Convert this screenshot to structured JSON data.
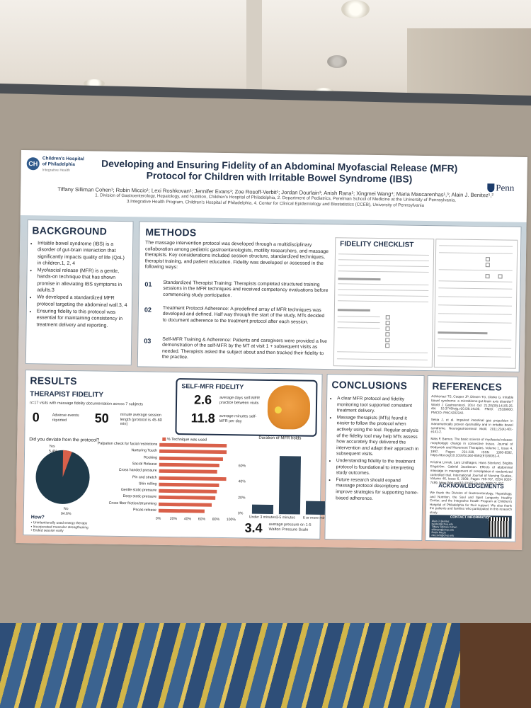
{
  "poster": {
    "title": "Developing and Ensuring Fidelity of an Abdominal Myofascial Release (MFR) Protocol for Children with Irritable Bowel Syndrome (IBS)",
    "authors": "Tiffany Silliman Cohen¹; Robin Miccio¹; Lexi Roshkovan¹; Jennifer Evans¹; Zoe Rosoff-Verbit¹; Jordan Dourlain¹; Anish Rana¹; Xingmei Wang⁴; Maria Mascarenhas¹,³; Alain J. Benitez¹,²",
    "affiliation_1": "1. Division of Gastroenterology, Hepatology, and Nutrition, Children's Hospital of Philadelphia, 2. Department of Pediatrics, Perelman School of Medicine at the University of Pennsylvania,",
    "affiliation_2": "3.Integrative Health Program, Children's Hospital of Philadelphia, 4. Center for Clinical Epidemiology and Biostatistics (CCEB), University of Pennsylvania",
    "logo_left_1": "Children's Hospital",
    "logo_left_2": "of Philadelphia",
    "logo_left_3": "Integrative Health",
    "logo_right": "Penn"
  },
  "background": {
    "heading": "BACKGROUND",
    "bullets": [
      "Irritable bowel syndrome (IBS) is a disorder of gut-brain interaction that significantly impacts quality of life (QoL) in children.1, 2, 4",
      "Myofascial release (MFR) is a gentle, hands-on technique that has shown promise in alleviating IBS symptoms in adults.3",
      "We developed a standardized MFR protocol targeting the abdominal wall.3, 4",
      "Ensuring fidelity to this protocol was essential for maintaining consistency in treatment delivery and reporting."
    ]
  },
  "methods": {
    "heading": "METHODS",
    "intro": "The massage intervention protocol was developed through a multidisciplinary collaboration among pediatric gastroenterologists, motility researchers, and massage therapists. Key considerations included session structure, standardized techniques, therapist training, and patient education. Fidelity was developed or assessed in the following ways:",
    "steps": [
      {
        "num": "01",
        "text": "Standardized Therapist Training: Therapists completed structured training sessions in the MFR techniques and received competency evaluations before commencing study participation."
      },
      {
        "num": "02",
        "text": "Treatment Protocol Adherence: A predefined array of MFR techniques was developed and defined. Half way through the start of the study, MTs decided to document adherence to the treatment protocol after each session."
      },
      {
        "num": "03",
        "text": "Self-MFR Training & Adherence: Patients and caregivers were provided a live demonstration of the self-MFR by the MT at visit 1 + subsequent visits as needed. Therapists asked the subject about and then tracked their fidelity to the practice."
      }
    ],
    "checklist_title": "FIDELITY CHECKLIST"
  },
  "results": {
    "heading": "RESULTS",
    "subheading": "THERAPIST FIDELITY",
    "note": "n=17 visits with massage fidelity documentation across 7 subjects",
    "stat1_value": "0",
    "stat1_label": "Adverse events reported",
    "stat2_value": "50",
    "stat2_label": "minute average session length (protocol is 45-60 min)",
    "pie_question": "Did you deviate from the protocol?",
    "pie_yes_label": "Yes",
    "pie_yes_pct": "5.4%",
    "pie_no_label": "No",
    "pie_no_pct": "94.6%",
    "how_heading": "How?",
    "how_items": [
      "Unintentionally used energy therapy",
      "Incorporated muscular strengthening",
      "Ended session early"
    ],
    "self_mfr_heading": "SELF-MFR FIDELITY",
    "self_stat1_value": "2.6",
    "self_stat1_label": "average days self-MFR practice between visits",
    "self_stat2_value": "11.8",
    "self_stat2_label": "average minutes self-MFR per day",
    "pressure_value": "3.4",
    "pressure_label": "average pressure on 1-5 Walton Pressure Scale"
  },
  "chart_data": [
    {
      "type": "pie",
      "title": "Did you deviate from the protocol?",
      "categories": [
        "Yes",
        "No"
      ],
      "values": [
        5.4,
        94.6
      ]
    },
    {
      "type": "bar",
      "orientation": "horizontal",
      "legend": "% Technique was used",
      "categories": [
        "Palpation check for facial restrictions",
        "Nurturing Touch",
        "Rocking",
        "Sacral Release",
        "Cross handed pressure",
        "Pin and stretch",
        "Skin rolling",
        "Gentle static pressure",
        "Deep static pressure",
        "Cross fiber friction/strumming",
        "Psoas release"
      ],
      "values": [
        95,
        95,
        90,
        85,
        82,
        95,
        85,
        82,
        80,
        75,
        65
      ],
      "xticks": [
        "0%",
        "20%",
        "40%",
        "60%",
        "80%",
        "100%"
      ],
      "xlim": [
        0,
        100
      ]
    },
    {
      "type": "bar",
      "title": "Duration of MFR holds",
      "categories": [
        "Under 3 minutes",
        "3-5 minutes",
        "6 or more minutes"
      ],
      "values": [
        12,
        73,
        17
      ],
      "yticks": [
        "0%",
        "20%",
        "40%",
        "60%"
      ],
      "ylim": [
        0,
        80
      ]
    }
  ],
  "conclusions": {
    "heading": "CONCLUSIONS",
    "bullets": [
      "A clear MFR protocol and fidelity monitoring tool supported consistent treatment delivery.",
      "Massage therapists (MTs) found it easier to follow the protocol when actively using the tool. Regular analysis of the fidelity tool may help MTs assess how accurately they delivered the intervention and adapt their approach in subsequent visits.",
      "Understanding fidelity to the treatment protocol is foundational to interpreting study outcomes.",
      "Future research should expand massage protocol descriptions and improve strategies for supporting home-based adherence."
    ]
  },
  "references": {
    "heading": "REFERENCES",
    "items": [
      "Ashkenazi TS, Cooper JP, Diesen TG, Clarke G. Irritable bowel syndrome: a microbiome-gut-brain axis disorder? World J Gastroenterol. 2014 Oct 21;20(39):14105-25. doi: 10.3748/wjg.v20.i39.14105. PMID: 25339800; PMCID: PMC4202342.",
      "Sekia J, et al. Impaired intestinal gas propulsion in manometrically proven dysmotility and in irritable bowel syndrome. Neurogastroenterol Motil. 2011;23(4):401-e141-2.",
      "Mats F, Barnes. The basic science of myofascial release: morphologic change in connective tissue. Journal of Bodywork and Movement Therapies, Volume 1, Issue 4, 1997, Pages 231-238, ISSN 1360-8592, https://doi.org/10.1016/S1360-8592(97)80051-4.",
      "Kristina Linnsk, Lars Lindhagen, Hans Stenlund, Birgitta Engström. Gabriel Jacobsson. Effects of abdominal massage in management of constipation-A randomized controlled trial. International Journal of Nursing Studies, Volume 46, Issue 6, 2009, Pages 759-767, ISSN 0020-7489, https://doi.org/10.1016/j.ijnurstu.2009.01.007."
    ],
    "ack_heading": "ACKNOWLEDGEMENTS",
    "ack_text": "We thank the Division of Gastroenterology, Hepatology, and Nutrition, the Soul and Spirit Longevity Healthy Center, and the Integrative Health Program at Children's Hospital of Philadelphia for their support. We also thank the patients and families who participated in this research study.",
    "contact_heading": "CONTACT INFORMATION",
    "contact_lines": [
      "Alain J. Benitez",
      "benitez@chop.edu",
      "Tiffany Silliman Cohen",
      "sillimant@chop.edu",
      "Robin Miccio",
      "micciorb@chop.edu"
    ]
  },
  "colors": {
    "navy": "#1f2f48",
    "accent": "#d9604a",
    "panel_dark": "#2c4358"
  }
}
